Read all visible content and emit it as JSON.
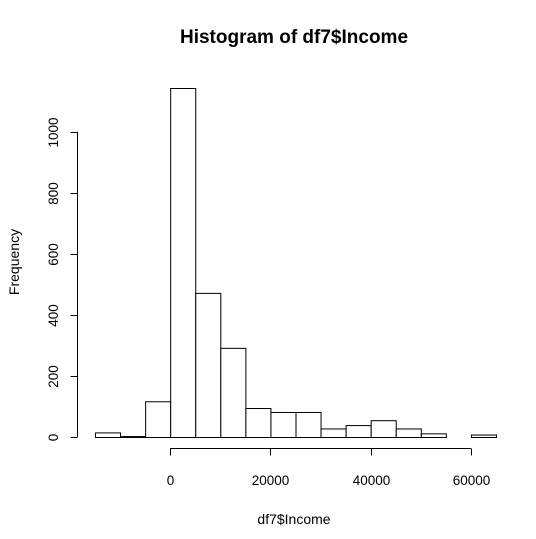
{
  "chart_data": {
    "type": "bar",
    "title": "Histogram of df7$Income",
    "xlabel": "df7$Income",
    "ylabel": "Frequency",
    "bin_width": 5000,
    "bins": [
      {
        "x0": -15000,
        "x1": -10000,
        "count": 15
      },
      {
        "x0": -10000,
        "x1": -5000,
        "count": 3
      },
      {
        "x0": -5000,
        "x1": 0,
        "count": 117
      },
      {
        "x0": 0,
        "x1": 5000,
        "count": 1143
      },
      {
        "x0": 5000,
        "x1": 10000,
        "count": 472
      },
      {
        "x0": 10000,
        "x1": 15000,
        "count": 292
      },
      {
        "x0": 15000,
        "x1": 20000,
        "count": 95
      },
      {
        "x0": 20000,
        "x1": 25000,
        "count": 82
      },
      {
        "x0": 25000,
        "x1": 30000,
        "count": 82
      },
      {
        "x0": 30000,
        "x1": 35000,
        "count": 28
      },
      {
        "x0": 35000,
        "x1": 40000,
        "count": 39
      },
      {
        "x0": 40000,
        "x1": 45000,
        "count": 55
      },
      {
        "x0": 45000,
        "x1": 50000,
        "count": 28
      },
      {
        "x0": 50000,
        "x1": 55000,
        "count": 12
      },
      {
        "x0": 55000,
        "x1": 60000,
        "count": 0
      },
      {
        "x0": 60000,
        "x1": 65000,
        "count": 8
      }
    ],
    "xticks": [
      0,
      20000,
      40000,
      60000
    ],
    "xtick_labels": [
      "0",
      "20000",
      "40000",
      "60000"
    ],
    "yticks": [
      0,
      200,
      400,
      600,
      800,
      1000
    ],
    "ytick_labels": [
      "0",
      "200",
      "400",
      "600",
      "800",
      "1000"
    ],
    "xlim": [
      -15000,
      65000
    ],
    "ylim": [
      0,
      1143
    ],
    "grid": false,
    "legend": "none",
    "colors": {
      "bar_fill": "#ffffff",
      "bar_stroke": "#000000",
      "background": "#ffffff"
    }
  }
}
